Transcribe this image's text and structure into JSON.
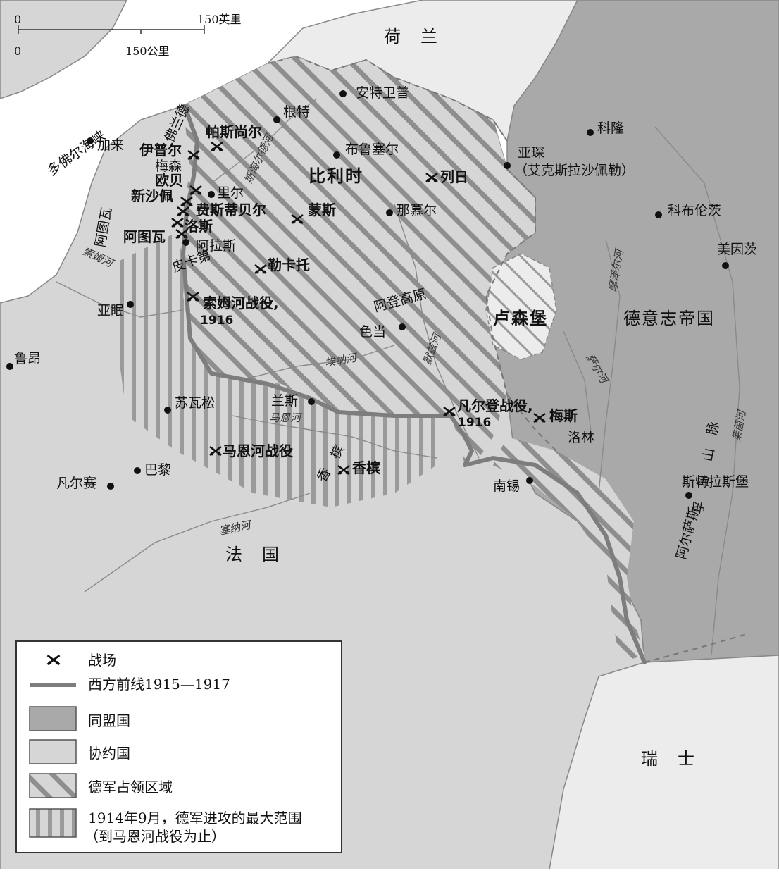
{
  "scale": {
    "zero_top": "0",
    "miles": "150英里",
    "zero_bottom": "0",
    "km": "150公里"
  },
  "countries": {
    "netherlands": "荷　兰",
    "belgium": "比利时",
    "germany": "德意志帝国",
    "luxembourg": "卢森堡",
    "france": "法　国",
    "switzerland": "瑞　士"
  },
  "regions": {
    "flanders": "佛兰德",
    "artois": "阿图瓦",
    "picardy": "皮卡第",
    "ardennes": "阿登高原",
    "champagne": "香　槟",
    "lorraine": "洛林",
    "vosges": "孚　日　山　脉",
    "alsace": "阿尔萨斯",
    "strait": "多佛尔海峡"
  },
  "cities": {
    "calais": "加来",
    "antwerp": "安特卫普",
    "ghent": "根特",
    "brussels": "布鲁塞尔",
    "cologne": "科隆",
    "aachen": "亚琛",
    "aachen_alt": "（艾克斯拉沙佩勒）",
    "liege": "列日",
    "namur": "那慕尔",
    "mons": "蒙斯",
    "koblenz": "科布伦茨",
    "mainz": "美因茨",
    "lille": "里尔",
    "arras": "阿拉斯",
    "amiens": "亚眠",
    "rouen": "鲁昂",
    "sedan": "色当",
    "reims": "兰斯",
    "soissons": "苏瓦松",
    "paris": "巴黎",
    "versailles": "凡尔赛",
    "nancy": "南锡",
    "metz": "梅斯",
    "strasbourg": "斯特拉斯堡"
  },
  "battles": {
    "passchendaele": "帕斯尚尔",
    "ypres": "伊普尔",
    "messines": "梅森",
    "aubers": "欧贝",
    "neuve_chapelle": "新沙佩",
    "festubert": "费斯蒂贝尔",
    "loos": "洛斯",
    "arras_battle": "阿图瓦",
    "mons_battle": "蒙斯",
    "le_cateau": "勒卡托",
    "somme": "索姆河战役,",
    "somme_year": "1916",
    "marne": "马恩河战役",
    "champagne_battle": "香槟",
    "verdun": "凡尔登战役,",
    "verdun_year": "1916",
    "liege_battle": "列日"
  },
  "rivers": {
    "yser": "斯海尔德河",
    "somme": "索姆河",
    "aisne": "埃纳河",
    "marne": "马恩河",
    "seine": "塞纳河",
    "meuse_river": "默兹河",
    "moselle": "摩泽尔河",
    "saar": "萨尔河",
    "rhine": "莱茵河"
  },
  "legend": {
    "battlefield": "战场",
    "front": "西方前线1915—1917",
    "central": "同盟国",
    "entente": "协约国",
    "occupied": "德军占领区域",
    "advance_line1": "1914年9月，德军进攻的最大范围",
    "advance_line2": "（到马恩河战役为止）"
  },
  "colors": {
    "sea": "#ffffff",
    "entente": "#d6d6d6",
    "central": "#a9a9a9",
    "neutral": "#ececec",
    "front": "#7d7d7d",
    "hatch": "#8e8e8e"
  }
}
